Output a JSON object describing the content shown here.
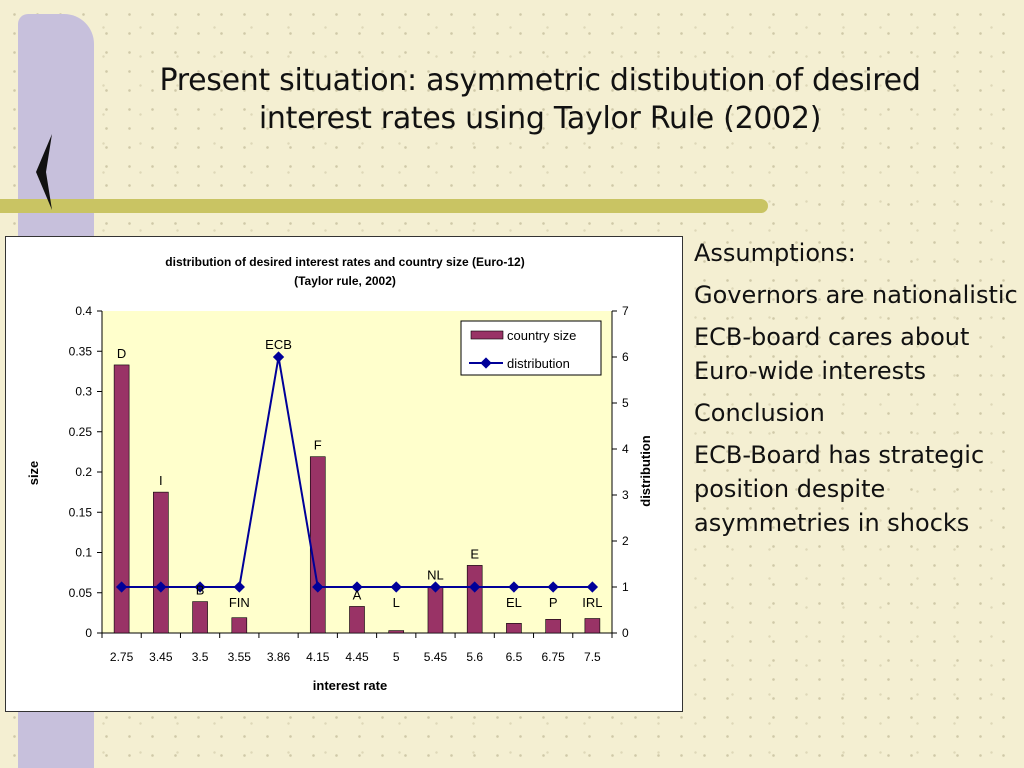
{
  "slide": {
    "title_line1": "Present situation: asymmetric distibution of desired",
    "title_line2": "interest rates using Taylor Rule (2002)"
  },
  "bullets": [
    "Assumptions:",
    "Governors are nationalistic",
    "ECB-board cares about Euro-wide interests",
    "Conclusion",
    "ECB-Board has strategic position despite asymmetries in shocks"
  ],
  "colors": {
    "bar": "#993366",
    "line": "#000099",
    "plot_bg": "#ffffcc"
  },
  "chart_data": {
    "type": "bar",
    "title_line1": "distribution of desired interest rates and country size (Euro-12)",
    "title_line2": "(Taylor rule, 2002)",
    "xlabel": "interest rate",
    "ylabel": "size",
    "y2label": "distribution",
    "categories": [
      "2.75",
      "3.45",
      "3.5",
      "3.55",
      "3.86",
      "4.15",
      "4.45",
      "5",
      "5.45",
      "5.6",
      "6.5",
      "6.75",
      "7.5"
    ],
    "country_labels": [
      "D",
      "I",
      "B",
      "FIN",
      "ECB",
      "F",
      "A",
      "L",
      "NL",
      "E",
      "EL",
      "P",
      "IRL"
    ],
    "ylim": [
      0,
      0.4
    ],
    "y_ticks": [
      "0",
      "0.05",
      "0.1",
      "0.15",
      "0.2",
      "0.25",
      "0.3",
      "0.35",
      "0.4"
    ],
    "y2lim": [
      0,
      7
    ],
    "y2_ticks": [
      "0",
      "1",
      "2",
      "3",
      "4",
      "5",
      "6",
      "7"
    ],
    "legend_position": "top-right",
    "grid": false,
    "series": [
      {
        "name": "country size",
        "type": "bar",
        "axis": "left",
        "values": [
          0.333,
          0.175,
          0.039,
          0.019,
          0.0,
          0.219,
          0.033,
          0.003,
          0.058,
          0.084,
          0.012,
          0.017,
          0.018
        ]
      },
      {
        "name": "distribution",
        "type": "line",
        "axis": "right",
        "values": [
          1,
          1,
          1,
          1,
          6,
          1,
          1,
          1,
          1,
          1,
          1,
          1,
          1
        ]
      }
    ]
  }
}
